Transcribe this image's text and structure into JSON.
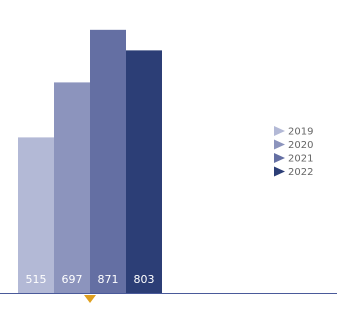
{
  "chart_data": {
    "type": "bar",
    "categories": [
      "2019",
      "2020",
      "2021",
      "2022"
    ],
    "values": [
      515,
      697,
      871,
      803
    ],
    "ylim": [
      0,
      930
    ],
    "colors": [
      "#b3b9d6",
      "#8c94bd",
      "#646fa3",
      "#2c3e76"
    ],
    "value_label_color": "#ffffff",
    "axis_color": "#4a5a9a",
    "marker_color": "#e0a020",
    "legend_position": "right",
    "grid": false,
    "title": "",
    "xlabel": "",
    "ylabel": ""
  }
}
